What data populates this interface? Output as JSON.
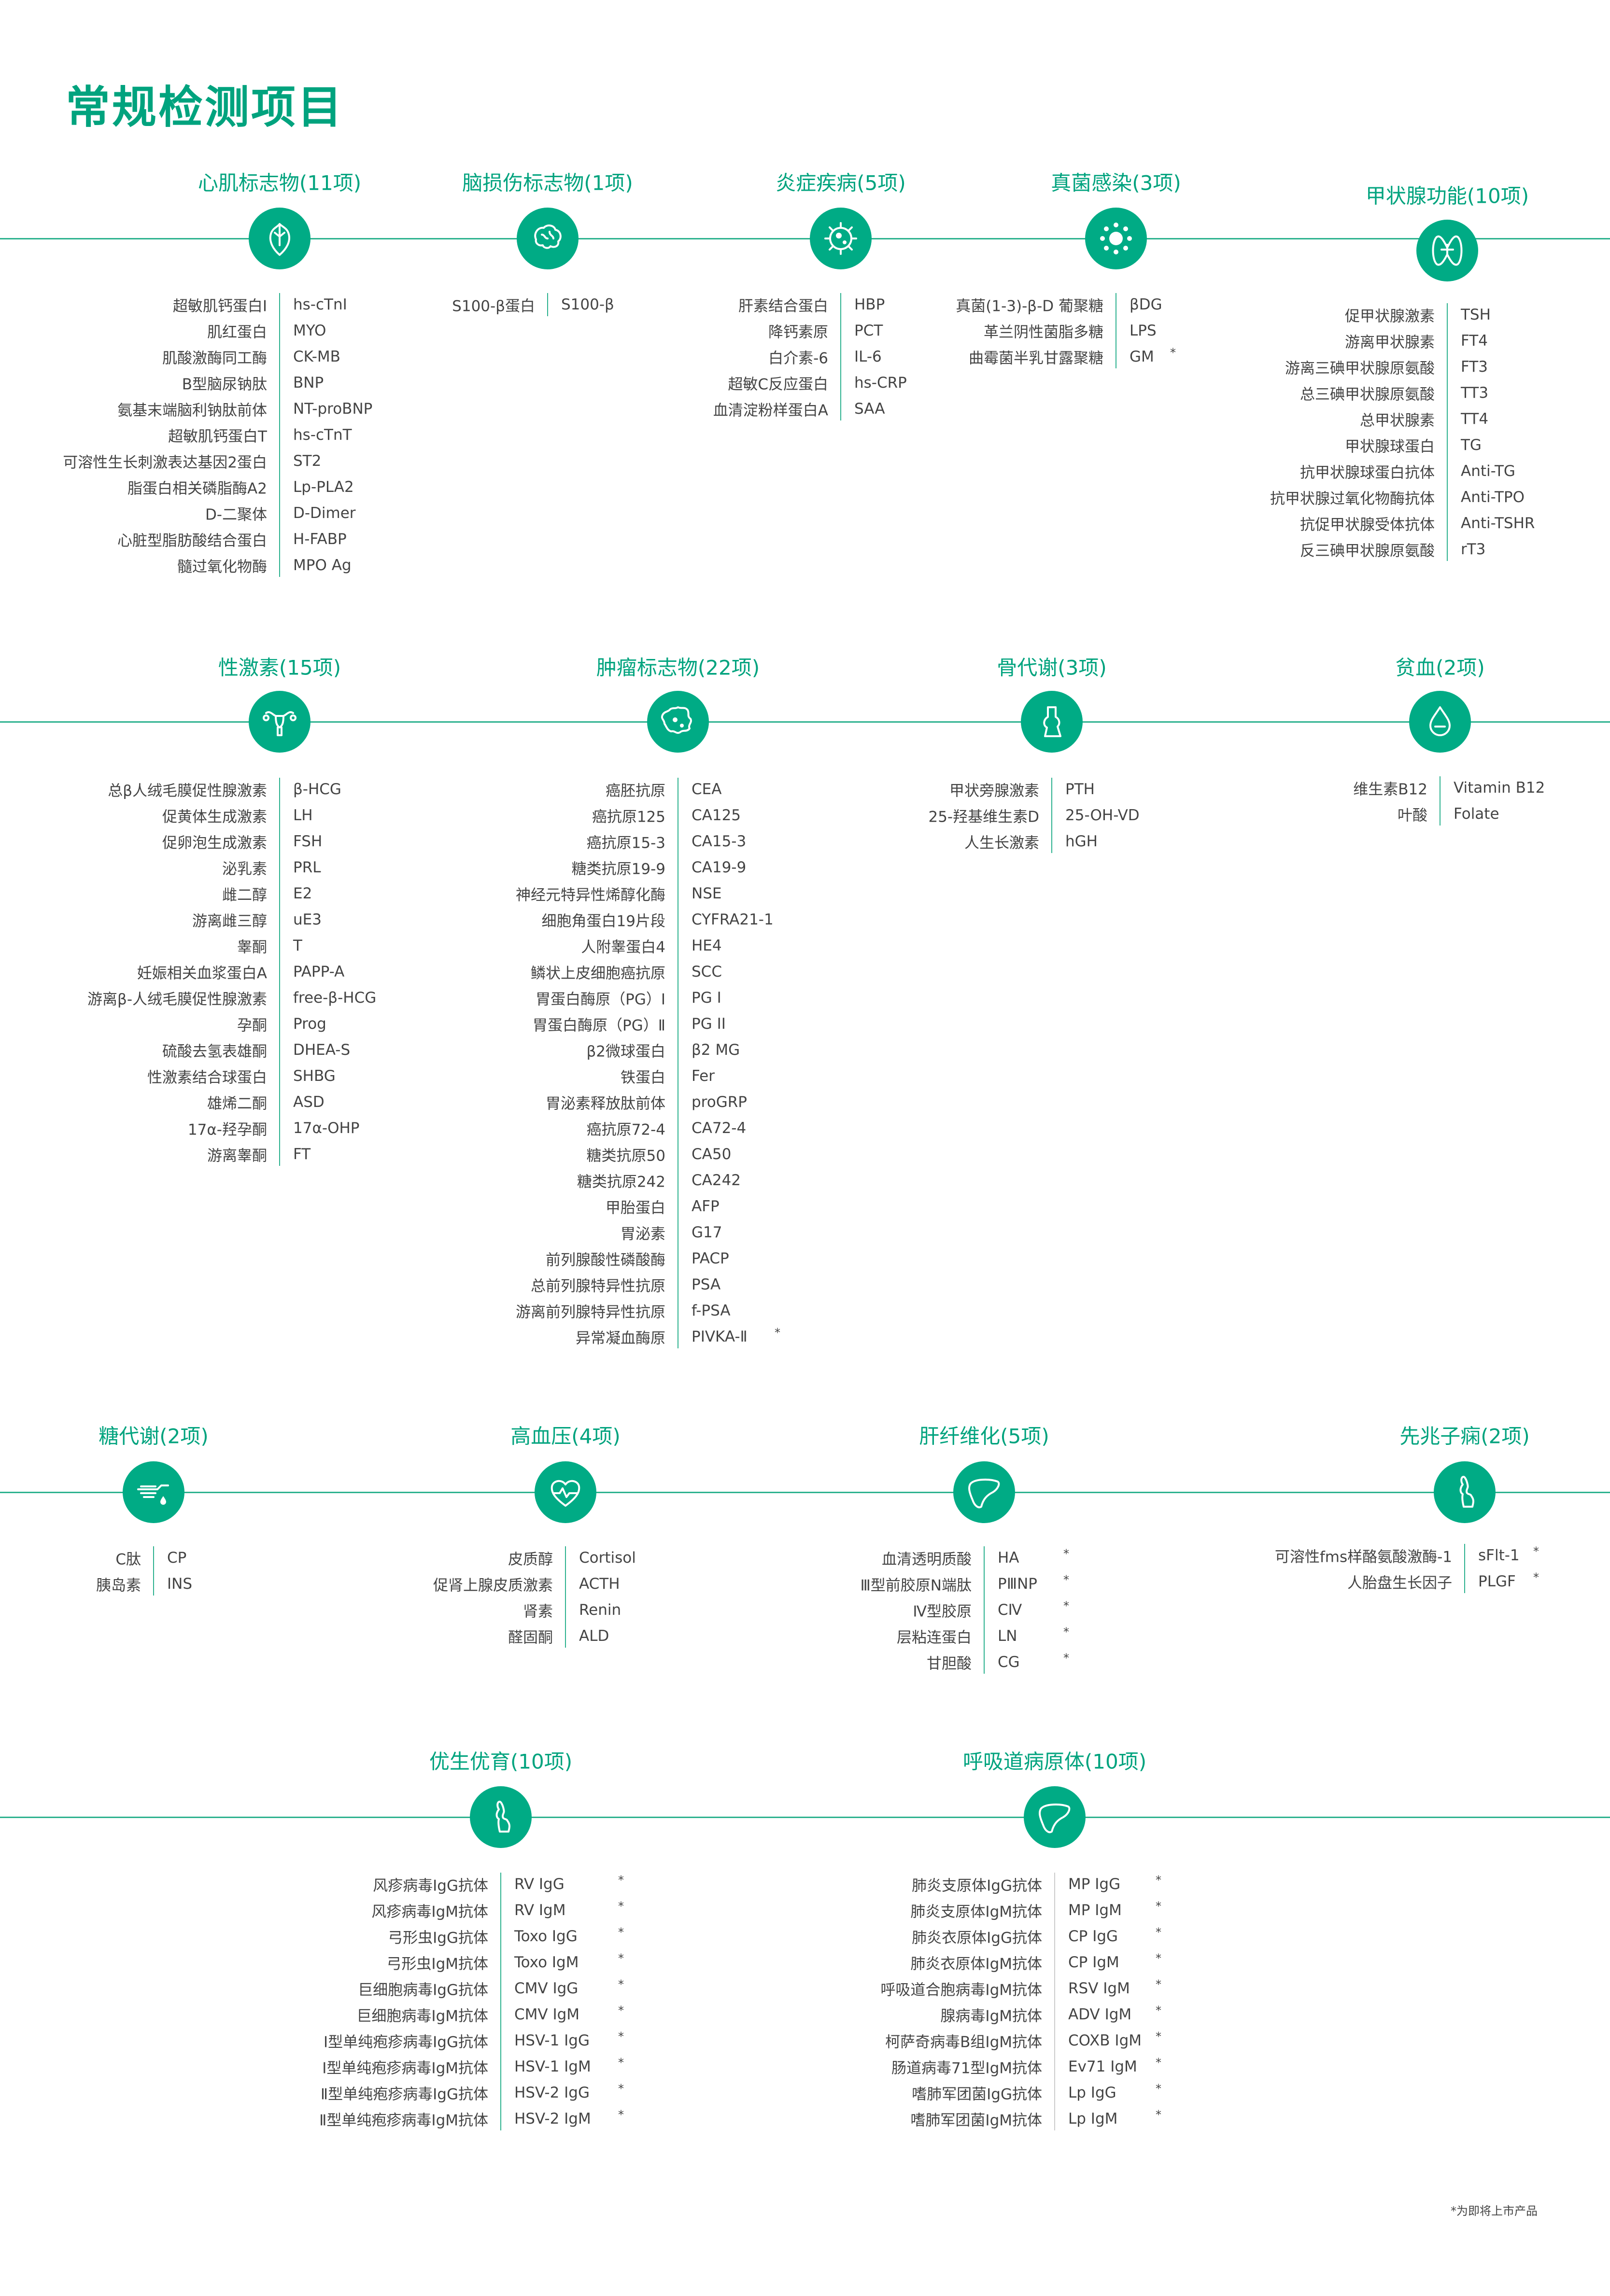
{
  "page_title": "常规检测项目",
  "footnote": "*为即将上市产品",
  "colors": {
    "accent": "#00a37e",
    "icon_bg": "#00ab85",
    "line": "#2db28f",
    "text": "#444444"
  },
  "sections": [
    {
      "title": "心肌标志物(11项)",
      "icon": "heart-icon",
      "items": [
        {
          "name": "超敏肌钙蛋白I",
          "code": "hs-cTnI"
        },
        {
          "name": "肌红蛋白",
          "code": "MYO"
        },
        {
          "name": "肌酸激酶同工酶",
          "code": "CK-MB"
        },
        {
          "name": "B型脑尿钠肽",
          "code": "BNP"
        },
        {
          "name": "氨基末端脑利钠肽前体",
          "code": "NT-proBNP"
        },
        {
          "name": "超敏肌钙蛋白T",
          "code": "hs-cTnT"
        },
        {
          "name": "可溶性生长刺激表达基因2蛋白",
          "code": "ST2"
        },
        {
          "name": "脂蛋白相关磷脂酶A2",
          "code": "Lp-PLA2"
        },
        {
          "name": "D-二聚体",
          "code": "D-Dimer"
        },
        {
          "name": "心脏型脂肪酸结合蛋白",
          "code": "H-FABP"
        },
        {
          "name": "髓过氧化物酶",
          "code": "MPO Ag"
        }
      ]
    },
    {
      "title": "脑损伤标志物(1项)",
      "icon": "brain-icon",
      "items": [
        {
          "name": "S100-β蛋白",
          "code": "S100-β"
        }
      ]
    },
    {
      "title": "炎症疾病(5项)",
      "icon": "bacteria-icon",
      "items": [
        {
          "name": "肝素结合蛋白",
          "code": "HBP"
        },
        {
          "name": "降钙素原",
          "code": "PCT"
        },
        {
          "name": "白介素-6",
          "code": "IL-6"
        },
        {
          "name": "超敏C反应蛋白",
          "code": "hs-CRP"
        },
        {
          "name": "血清淀粉样蛋白A",
          "code": "SAA"
        }
      ]
    },
    {
      "title": "真菌感染(3项)",
      "icon": "virus-icon",
      "items": [
        {
          "name": "真菌(1-3)-β-D 葡聚糖",
          "code": "βDG"
        },
        {
          "name": "革兰阴性菌脂多糖",
          "code": "LPS"
        },
        {
          "name": "曲霉菌半乳甘露聚糖",
          "code": "GM",
          "star": "*"
        }
      ]
    },
    {
      "title": "甲状腺功能(10项)",
      "icon": "thyroid-icon",
      "items": [
        {
          "name": "促甲状腺激素",
          "code": "TSH"
        },
        {
          "name": "游离甲状腺素",
          "code": "FT4"
        },
        {
          "name": "游离三碘甲状腺原氨酸",
          "code": "FT3"
        },
        {
          "name": "总三碘甲状腺原氨酸",
          "code": "TT3"
        },
        {
          "name": "总甲状腺素",
          "code": "TT4"
        },
        {
          "name": "甲状腺球蛋白",
          "code": "TG"
        },
        {
          "name": "抗甲状腺球蛋白抗体",
          "code": "Anti-TG"
        },
        {
          "name": "抗甲状腺过氧化物酶抗体",
          "code": "Anti-TPO"
        },
        {
          "name": "抗促甲状腺受体抗体",
          "code": "Anti-TSHR"
        },
        {
          "name": "反三碘甲状腺原氨酸",
          "code": "rT3"
        }
      ]
    },
    {
      "title": "性激素(15项)",
      "icon": "uterus-icon",
      "items": [
        {
          "name": "总β人绒毛膜促性腺激素",
          "code": "β-HCG"
        },
        {
          "name": "促黄体生成激素",
          "code": "LH"
        },
        {
          "name": "促卵泡生成激素",
          "code": "FSH"
        },
        {
          "name": "泌乳素",
          "code": "PRL"
        },
        {
          "name": "雌二醇",
          "code": "E2"
        },
        {
          "name": "游离雌三醇",
          "code": "uE3"
        },
        {
          "name": "睾酮",
          "code": "T"
        },
        {
          "name": "妊娠相关血浆蛋白A",
          "code": "PAPP-A"
        },
        {
          "name": "游离β-人绒毛膜促性腺激素",
          "code": "free-β-HCG"
        },
        {
          "name": "孕酮",
          "code": "Prog"
        },
        {
          "name": "硫酸去氢表雄酮",
          "code": "DHEA-S"
        },
        {
          "name": "性激素结合球蛋白",
          "code": "SHBG"
        },
        {
          "name": "雄烯二酮",
          "code": "ASD"
        },
        {
          "name": "17α-羟孕酮",
          "code": "17α-OHP"
        },
        {
          "name": "游离睾酮",
          "code": "FT"
        }
      ]
    },
    {
      "title": "肿瘤标志物(22项)",
      "icon": "tumor-cell-icon",
      "items": [
        {
          "name": "癌胚抗原",
          "code": "CEA"
        },
        {
          "name": "癌抗原125",
          "code": "CA125"
        },
        {
          "name": "癌抗原15-3",
          "code": "CA15-3"
        },
        {
          "name": "糖类抗原19-9",
          "code": "CA19-9"
        },
        {
          "name": "神经元特异性烯醇化酶",
          "code": "NSE"
        },
        {
          "name": "细胞角蛋白19片段",
          "code": "CYFRA21-1"
        },
        {
          "name": "人附睾蛋白4",
          "code": "HE4"
        },
        {
          "name": "鳞状上皮细胞癌抗原",
          "code": "SCC"
        },
        {
          "name": "胃蛋白酶原（PG）Ⅰ",
          "code": "PG I"
        },
        {
          "name": "胃蛋白酶原（PG）Ⅱ",
          "code": "PG II"
        },
        {
          "name": "β2微球蛋白",
          "code": "β2 MG"
        },
        {
          "name": "铁蛋白",
          "code": "Fer"
        },
        {
          "name": "胃泌素释放肽前体",
          "code": "proGRP"
        },
        {
          "name": "癌抗原72-4",
          "code": "CA72-4"
        },
        {
          "name": "糖类抗原50",
          "code": "CA50"
        },
        {
          "name": "糖类抗原242",
          "code": "CA242"
        },
        {
          "name": "甲胎蛋白",
          "code": "AFP"
        },
        {
          "name": "胃泌素",
          "code": "G17"
        },
        {
          "name": "前列腺酸性磷酸酶",
          "code": "PACP"
        },
        {
          "name": "总前列腺特异性抗原",
          "code": "PSA"
        },
        {
          "name": "游离前列腺特异性抗原",
          "code": "f-PSA"
        },
        {
          "name": "异常凝血酶原",
          "code": "PIVKA-Ⅱ",
          "star": "*"
        }
      ]
    },
    {
      "title": "骨代谢(3项)",
      "icon": "bone-joint-icon",
      "items": [
        {
          "name": "甲状旁腺激素",
          "code": "PTH"
        },
        {
          "name": "25-羟基维生素D",
          "code": "25-OH-VD"
        },
        {
          "name": "人生长激素",
          "code": "hGH"
        }
      ]
    },
    {
      "title": "贫血(2项)",
      "icon": "blood-drop-icon",
      "items": [
        {
          "name": "维生素B12",
          "code": "Vitamin B12"
        },
        {
          "name": "叶酸",
          "code": "Folate"
        }
      ]
    },
    {
      "title": "糖代谢(2项)",
      "icon": "glucose-test-icon",
      "items": [
        {
          "name": "C肽",
          "code": "CP"
        },
        {
          "name": "胰岛素",
          "code": "INS"
        }
      ]
    },
    {
      "title": "高血压(4项)",
      "icon": "heart-pulse-icon",
      "items": [
        {
          "name": "皮质醇",
          "code": "Cortisol"
        },
        {
          "name": "促肾上腺皮质激素",
          "code": "ACTH"
        },
        {
          "name": "肾素",
          "code": "Renin"
        },
        {
          "name": "醛固酮",
          "code": "ALD"
        }
      ]
    },
    {
      "title": "肝纤维化(5项)",
      "icon": "liver-icon",
      "items": [
        {
          "name": "血清透明质酸",
          "code": "HA",
          "star": "*"
        },
        {
          "name": "Ⅲ型前胶原N端肽",
          "code": "PⅢNP",
          "star": "*"
        },
        {
          "name": "Ⅳ型胶原",
          "code": "CⅣ",
          "star": "*"
        },
        {
          "name": "层粘连蛋白",
          "code": "LN",
          "star": "*"
        },
        {
          "name": "甘胆酸",
          "code": "CG",
          "star": "*"
        }
      ]
    },
    {
      "title": "先兆子痫(2项)",
      "icon": "pregnant-icon",
      "items": [
        {
          "name": "可溶性fms样酪氨酸激酶-1",
          "code": "sFlt-1",
          "star": "*"
        },
        {
          "name": "人胎盘生长因子",
          "code": "PLGF",
          "star": "*"
        }
      ]
    },
    {
      "title": "优生优育(10项)",
      "icon": "pregnant-icon",
      "items": [
        {
          "name": "风疹病毒IgG抗体",
          "code": "RV IgG",
          "star": "*"
        },
        {
          "name": "风疹病毒IgM抗体",
          "code": "RV IgM",
          "star": "*"
        },
        {
          "name": "弓形虫IgG抗体",
          "code": "Toxo IgG",
          "star": "*"
        },
        {
          "name": "弓形虫IgM抗体",
          "code": "Toxo IgM",
          "star": "*"
        },
        {
          "name": "巨细胞病毒IgG抗体",
          "code": "CMV IgG",
          "star": "*"
        },
        {
          "name": "巨细胞病毒IgM抗体",
          "code": "CMV IgM",
          "star": "*"
        },
        {
          "name": "Ⅰ型单纯疱疹病毒IgG抗体",
          "code": "HSV-1 IgG",
          "star": "*"
        },
        {
          "name": "Ⅰ型单纯疱疹病毒IgM抗体",
          "code": "HSV-1 IgM",
          "star": "*"
        },
        {
          "name": "Ⅱ型单纯疱疹病毒IgG抗体",
          "code": "HSV-2 IgG",
          "star": "*"
        },
        {
          "name": "Ⅱ型单纯疱疹病毒IgM抗体",
          "code": "HSV-2 IgM",
          "star": "*"
        }
      ]
    },
    {
      "title": "呼吸道病原体(10项)",
      "icon": "liver-icon",
      "items": [
        {
          "name": "肺炎支原体IgG抗体",
          "code": "MP IgG",
          "star": "*"
        },
        {
          "name": "肺炎支原体IgM抗体",
          "code": "MP IgM",
          "star": "*"
        },
        {
          "name": "肺炎衣原体IgG抗体",
          "code": "CP IgG",
          "star": "*"
        },
        {
          "name": "肺炎衣原体IgM抗体",
          "code": "CP IgM",
          "star": "*"
        },
        {
          "name": "呼吸道合胞病毒IgM抗体",
          "code": "RSV IgM",
          "star": "*"
        },
        {
          "name": "腺病毒IgM抗体",
          "code": "ADV IgM",
          "star": "*"
        },
        {
          "name": "柯萨奇病毒B组IgM抗体",
          "code": "COXB IgM",
          "star": "*"
        },
        {
          "name": "肠道病毒71型IgM抗体",
          "code": "Ev71 IgM",
          "star": "*"
        },
        {
          "name": "嗜肺军团菌IgG抗体",
          "code": "Lp IgG",
          "star": "*"
        },
        {
          "name": "嗜肺军团菌IgM抗体",
          "code": "Lp IgM",
          "star": "*"
        }
      ]
    }
  ]
}
